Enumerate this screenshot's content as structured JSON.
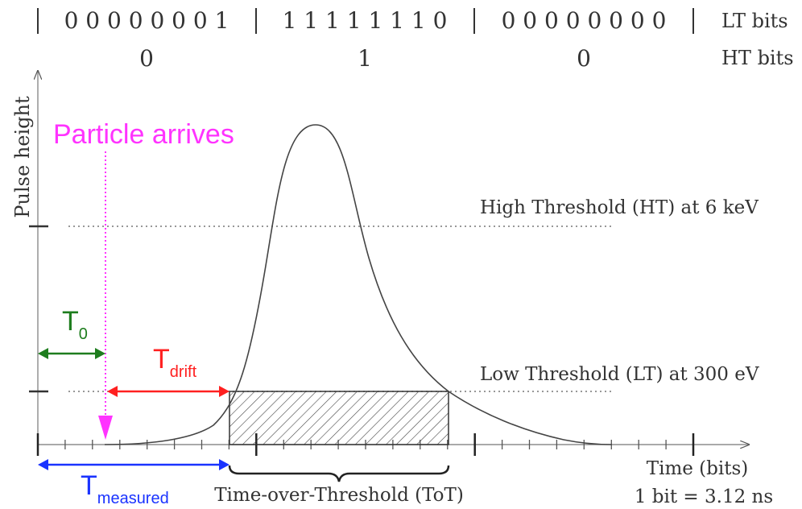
{
  "bits": {
    "lt_groups": [
      "0 0 0 0 0 0 0 1",
      "1 1 1 1 1 1 1 0",
      "0 0 0 0 0 0 0 0"
    ],
    "lt_label": "LT bits",
    "ht_values": [
      "0",
      "1",
      "0"
    ],
    "ht_label": "HT bits"
  },
  "axes": {
    "y_label": "Pulse height",
    "x_label": "Time (bits)",
    "bit_conversion": "1 bit = 3.12 ns"
  },
  "thresholds": {
    "high": "High Threshold (HT) at 6 keV",
    "low": "Low Threshold (LT) at 300 eV"
  },
  "annotations": {
    "particle": "Particle arrives",
    "t0": "T",
    "t0_sub": "0",
    "tdrift": "T",
    "tdrift_sub": "drift",
    "tmeasured": "T",
    "tmeasured_sub": "measured",
    "tot": "Time-over-Threshold (ToT)"
  },
  "colors": {
    "magenta": "#ff33ff",
    "green": "#1e7d1e",
    "red": "#ff2020",
    "blue": "#1a33ff",
    "ink": "#333333"
  }
}
